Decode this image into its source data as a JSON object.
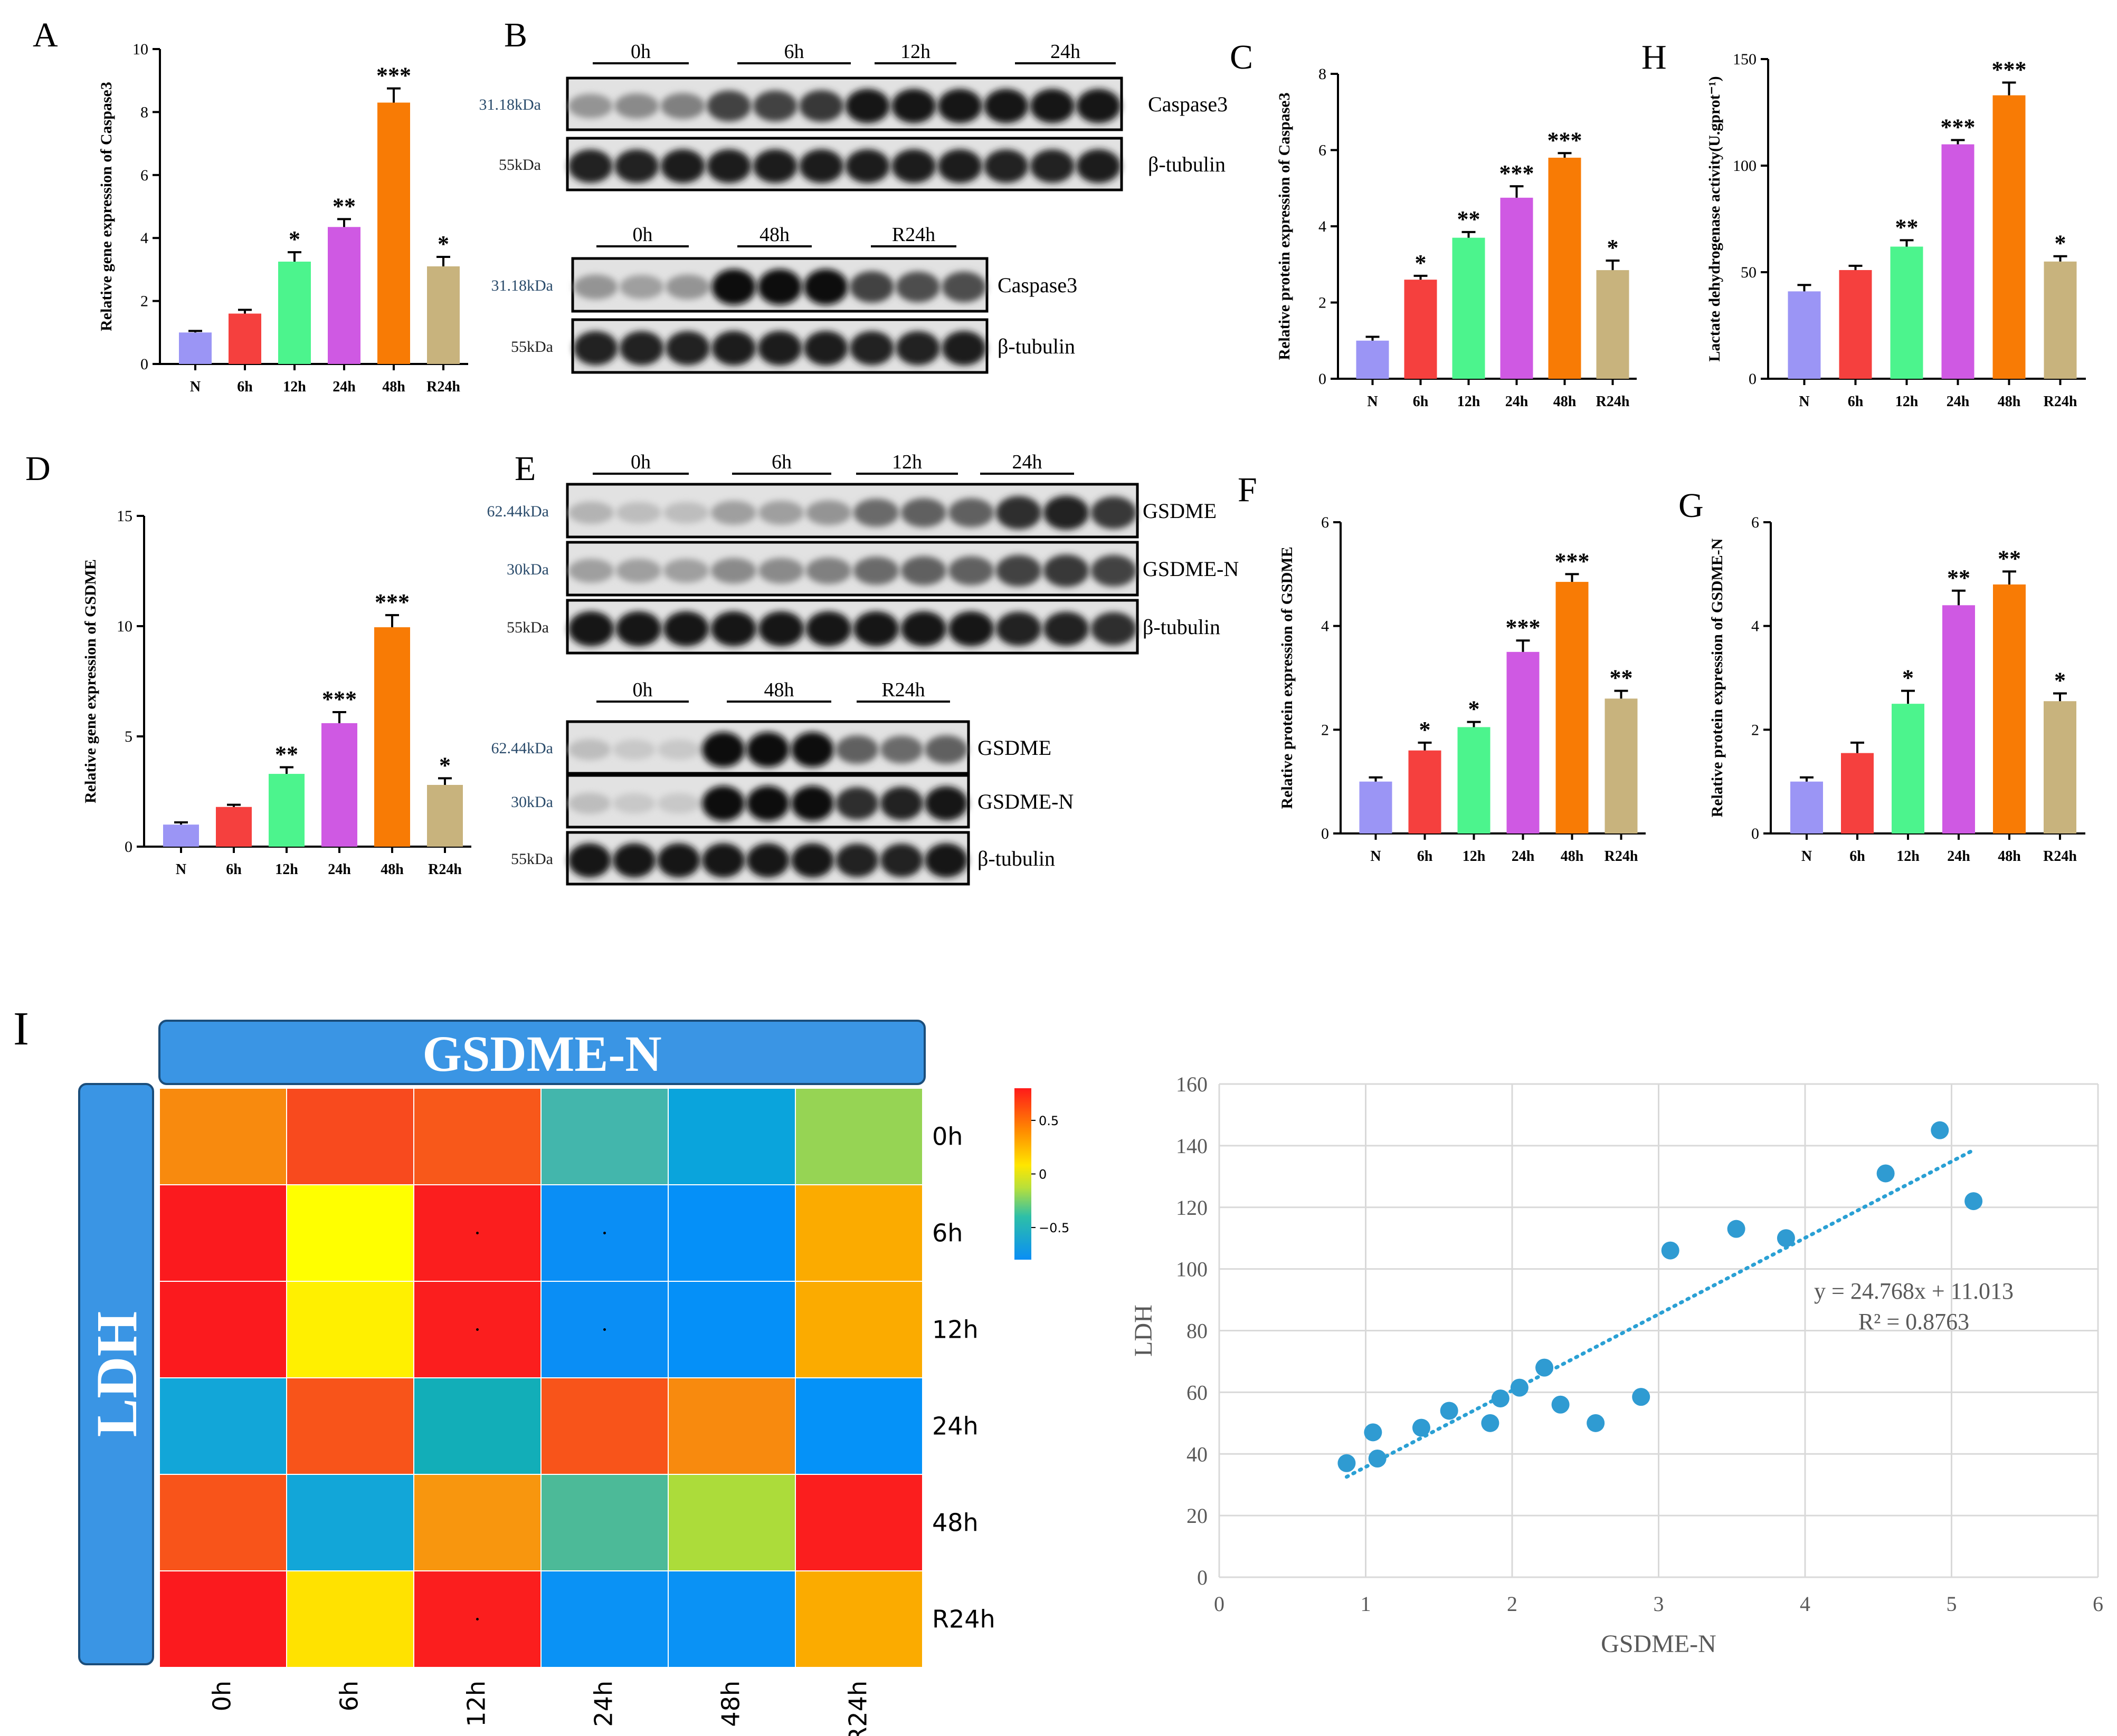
{
  "colors": {
    "bars": [
      "#9b95f5",
      "#f5403e",
      "#4cf48d",
      "#cf59e3",
      "#f87b05",
      "#c8b37d"
    ],
    "scatter_point": "#2f9bd2",
    "trend": "#2aa0d4",
    "header_box": "#3a95e4"
  },
  "panels": {
    "A": "A",
    "B": "B",
    "C": "C",
    "D": "D",
    "E": "E",
    "F": "F",
    "G": "G",
    "H": "H",
    "I": "I"
  },
  "blots": {
    "B_top": {
      "groups": [
        "0h",
        "6h",
        "12h",
        "24h"
      ],
      "kda": [
        "31.18kDa",
        "55kDa"
      ],
      "labels": [
        "Caspase3",
        "β-tubulin"
      ]
    },
    "B_bottom": {
      "groups": [
        "0h",
        "48h",
        "R24h"
      ],
      "kda": [
        "31.18kDa",
        "55kDa"
      ],
      "labels": [
        "Caspase3",
        "β-tubulin"
      ]
    },
    "E_top": {
      "groups": [
        "0h",
        "6h",
        "12h",
        "24h"
      ],
      "kda": [
        "62.44kDa",
        "30kDa",
        "55kDa"
      ],
      "labels": [
        "GSDME",
        "GSDME-N",
        "β-tubulin"
      ]
    },
    "E_bottom": {
      "groups": [
        "0h",
        "48h",
        "R24h"
      ],
      "kda": [
        "62.44kDa",
        "30kDa",
        "55kDa"
      ],
      "labels": [
        "GSDME",
        "GSDME-N",
        "β-tubulin"
      ]
    }
  },
  "heatmap": {
    "title": "GSDME-N",
    "ylabel": "LDH",
    "columns": [
      "0h",
      "6h",
      "12h",
      "24h",
      "48h",
      "R24h"
    ],
    "rows": [
      "0h",
      "6h",
      "12h",
      "24h",
      "48h",
      "R24h"
    ],
    "cells": [
      [
        "#f88a0e",
        "#f84a1e",
        "#f8581a",
        "#43b6ac",
        "#0aa4dc",
        "#96d454"
      ],
      [
        "#fb1a1e",
        "#ffff00",
        "#fb1e1e",
        "#0a8ef5",
        "#0590f8",
        "#fbab00"
      ],
      [
        "#fb1a1e",
        "#fff000",
        "#fb1e1e",
        "#0a8ef5",
        "#0590f8",
        "#fbab00"
      ],
      [
        "#12a6d8",
        "#f8541a",
        "#12aeb8",
        "#f8541a",
        "#f88a0e",
        "#0592f8"
      ],
      [
        "#f8541a",
        "#12a6d8",
        "#f8960e",
        "#4cba98",
        "#acdc3a",
        "#fb1e1e"
      ],
      [
        "#fb1a1e",
        "#ffe200",
        "#fb1e1e",
        "#0a92f5",
        "#0a92f5",
        "#fbab00"
      ]
    ],
    "dots": [
      [
        1,
        2
      ],
      [
        1,
        3
      ],
      [
        2,
        2
      ],
      [
        2,
        3
      ],
      [
        5,
        2
      ]
    ],
    "colorbar": {
      "ticks": [
        "0.5",
        "0",
        "−0.5"
      ],
      "tick_values": [
        0.5,
        0,
        -0.5
      ],
      "range": [
        -0.8,
        0.8
      ]
    }
  },
  "chart_data": [
    {
      "id": "A",
      "type": "bar",
      "categories": [
        "N",
        "6h",
        "12h",
        "24h",
        "48h",
        "R24h"
      ],
      "values": [
        1.0,
        1.6,
        3.25,
        4.35,
        8.3,
        3.1
      ],
      "errors": [
        0.05,
        0.12,
        0.3,
        0.25,
        0.45,
        0.3
      ],
      "significance": [
        "",
        "",
        "*",
        "**",
        "***",
        "*"
      ],
      "ylabel": "Relative gene expression of Caspase3",
      "ylim": [
        0,
        10
      ],
      "yticks": [
        0,
        2,
        4,
        6,
        8,
        10
      ]
    },
    {
      "id": "C",
      "type": "bar",
      "categories": [
        "N",
        "6h",
        "12h",
        "24h",
        "48h",
        "R24h"
      ],
      "values": [
        1.0,
        2.6,
        3.7,
        4.75,
        5.8,
        2.85
      ],
      "errors": [
        0.1,
        0.1,
        0.15,
        0.3,
        0.12,
        0.25
      ],
      "significance": [
        "",
        "*",
        "**",
        "***",
        "***",
        "*"
      ],
      "ylabel": "Relative protein expression of Caspase3",
      "ylim": [
        0,
        8
      ],
      "yticks": [
        0,
        2,
        4,
        6,
        8
      ]
    },
    {
      "id": "H",
      "type": "bar",
      "categories": [
        "N",
        "6h",
        "12h",
        "24h",
        "48h",
        "R24h"
      ],
      "values": [
        41,
        51,
        62,
        110,
        133,
        55
      ],
      "errors": [
        3,
        2,
        3,
        2,
        6,
        2.5
      ],
      "significance": [
        "",
        "",
        "**",
        "***",
        "***",
        "*"
      ],
      "ylabel": "Lactate dehydrogenase activity(U.gprot⁻¹)",
      "ylim": [
        0,
        150
      ],
      "yticks": [
        0,
        50,
        100,
        150
      ]
    },
    {
      "id": "D",
      "type": "bar",
      "categories": [
        "N",
        "6h",
        "12h",
        "24h",
        "48h",
        "R24h"
      ],
      "values": [
        1.0,
        1.8,
        3.3,
        5.6,
        9.95,
        2.8
      ],
      "errors": [
        0.1,
        0.1,
        0.3,
        0.5,
        0.55,
        0.3
      ],
      "significance": [
        "",
        "",
        "**",
        "***",
        "***",
        "*"
      ],
      "ylabel": "Relative gene expression of GSDME",
      "ylim": [
        0,
        15
      ],
      "yticks": [
        0,
        5,
        10,
        15
      ]
    },
    {
      "id": "F",
      "type": "bar",
      "categories": [
        "N",
        "6h",
        "12h",
        "24h",
        "48h",
        "R24h"
      ],
      "values": [
        1.0,
        1.6,
        2.05,
        3.5,
        4.85,
        2.6
      ],
      "errors": [
        0.08,
        0.15,
        0.1,
        0.22,
        0.15,
        0.15
      ],
      "significance": [
        "",
        "*",
        "*",
        "***",
        "***",
        "**"
      ],
      "ylabel": "Relative protein expression of GSDME",
      "ylim": [
        0,
        6
      ],
      "yticks": [
        0,
        2,
        4,
        6
      ]
    },
    {
      "id": "G",
      "type": "bar",
      "categories": [
        "N",
        "6h",
        "12h",
        "24h",
        "48h",
        "R24h"
      ],
      "values": [
        1.0,
        1.55,
        2.5,
        4.4,
        4.8,
        2.55
      ],
      "errors": [
        0.08,
        0.2,
        0.25,
        0.28,
        0.25,
        0.15
      ],
      "significance": [
        "",
        "",
        "*",
        "**",
        "**",
        "*"
      ],
      "ylabel": "Relative protein expression of GSDME-N",
      "ylim": [
        0,
        6
      ],
      "yticks": [
        0,
        2,
        4,
        6
      ]
    },
    {
      "id": "I_scatter",
      "type": "scatter",
      "x": [
        0.87,
        1.05,
        1.08,
        1.38,
        1.57,
        1.85,
        1.92,
        2.05,
        2.22,
        2.33,
        2.57,
        2.88,
        3.08,
        3.53,
        3.87,
        4.55,
        4.92,
        5.15
      ],
      "y": [
        37,
        47,
        38.5,
        48.5,
        54,
        50,
        58,
        61.5,
        68,
        56,
        50,
        58.5,
        106,
        113,
        110,
        131,
        145,
        122
      ],
      "trendline": {
        "slope": 24.768,
        "intercept": 11.013,
        "x_range": [
          0.87,
          5.15
        ]
      },
      "equation": "y = 24.768x + 11.013",
      "r2": "R² = 0.8763",
      "xlabel": "GSDME-N",
      "ylabel": "LDH",
      "xlim": [
        0,
        6
      ],
      "ylim": [
        0,
        160
      ],
      "xticks": [
        0,
        1,
        2,
        3,
        4,
        5,
        6
      ],
      "yticks": [
        0,
        20,
        40,
        60,
        80,
        100,
        120,
        140,
        160
      ]
    }
  ]
}
